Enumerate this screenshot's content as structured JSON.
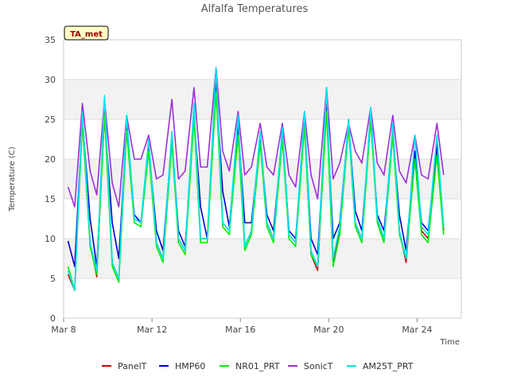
{
  "chart_data": {
    "type": "line",
    "title": "Alfalfa Temperatures",
    "xlabel": "Time",
    "ylabel": "Temperature (C)",
    "site_tag": "TA_met",
    "ylim": [
      0,
      35
    ],
    "yticks": [
      0,
      5,
      10,
      15,
      20,
      25,
      30,
      35
    ],
    "xlim_days": [
      8,
      26
    ],
    "xticks": [
      {
        "day": 8,
        "label": "Mar 8"
      },
      {
        "day": 12,
        "label": "Mar 12"
      },
      {
        "day": 16,
        "label": "Mar 16"
      },
      {
        "day": 20,
        "label": "Mar 20"
      },
      {
        "day": 24,
        "label": "Mar 24"
      }
    ],
    "legend_position": "bottom",
    "grid": true,
    "series": [
      {
        "name": "PanelT",
        "color": "#cc0000"
      },
      {
        "name": "HMP60",
        "color": "#0000cc"
      },
      {
        "name": "NR01_PRT",
        "color": "#00ee00"
      },
      {
        "name": "SonicT",
        "color": "#9b30d9"
      },
      {
        "name": "AM25T_PRT",
        "color": "#00e5ee"
      }
    ],
    "x": [
      8.2,
      8.5,
      8.85,
      9.2,
      9.5,
      9.85,
      10.2,
      10.5,
      10.85,
      11.2,
      11.5,
      11.85,
      12.2,
      12.5,
      12.9,
      13.2,
      13.5,
      13.9,
      14.2,
      14.5,
      14.9,
      15.2,
      15.5,
      15.9,
      16.2,
      16.5,
      16.9,
      17.2,
      17.5,
      17.9,
      18.2,
      18.5,
      18.9,
      19.2,
      19.5,
      19.9,
      20.2,
      20.5,
      20.9,
      21.2,
      21.5,
      21.9,
      22.2,
      22.5,
      22.9,
      23.2,
      23.5,
      23.9,
      24.2,
      24.5,
      24.9,
      25.2
    ],
    "values": {
      "PanelT": [
        5.5,
        3.5,
        25.5,
        9.5,
        5.2,
        26.5,
        7.0,
        5.0,
        24.5,
        12.5,
        12.0,
        22.0,
        9.5,
        7.5,
        23.0,
        10.0,
        8.5,
        26.0,
        10.0,
        10.0,
        30.0,
        12.0,
        11.0,
        24.5,
        9.0,
        11.0,
        23.0,
        12.0,
        10.0,
        23.5,
        10.5,
        9.5,
        25.0,
        8.0,
        6.0,
        27.0,
        7.0,
        11.0,
        25.0,
        12.0,
        10.0,
        25.5,
        12.5,
        10.0,
        24.0,
        11.0,
        7.0,
        21.0,
        11.0,
        10.0,
        22.0,
        11.0
      ],
      "HMP60": [
        9.7,
        6.5,
        25.0,
        12.5,
        6.5,
        25.5,
        12.0,
        7.5,
        24.0,
        13.0,
        12.0,
        21.5,
        11.0,
        8.5,
        22.5,
        11.0,
        9.0,
        25.5,
        14.0,
        10.0,
        29.0,
        16.0,
        11.5,
        24.0,
        12.0,
        12.0,
        22.5,
        13.0,
        11.0,
        23.0,
        11.0,
        10.0,
        24.5,
        10.0,
        8.0,
        26.5,
        10.0,
        12.0,
        24.5,
        13.5,
        11.0,
        25.0,
        13.0,
        11.0,
        23.0,
        13.0,
        8.5,
        21.0,
        12.0,
        11.0,
        21.5,
        11.5
      ],
      "NR01_PRT": [
        6.5,
        3.5,
        24.5,
        9.0,
        5.5,
        25.5,
        6.5,
        4.5,
        23.5,
        12.0,
        11.5,
        21.0,
        9.0,
        7.0,
        22.0,
        9.5,
        8.0,
        25.0,
        9.5,
        9.5,
        28.5,
        11.5,
        10.5,
        23.0,
        8.5,
        10.5,
        22.0,
        11.5,
        9.5,
        22.5,
        10.0,
        9.0,
        24.0,
        8.0,
        6.5,
        26.0,
        6.5,
        10.5,
        24.0,
        11.5,
        9.5,
        25.0,
        12.0,
        9.5,
        23.0,
        10.5,
        7.5,
        20.0,
        10.5,
        9.5,
        20.5,
        10.5
      ],
      "SonicT": [
        16.5,
        14.0,
        27.0,
        18.5,
        15.5,
        27.5,
        17.0,
        14.0,
        25.5,
        20.0,
        20.0,
        23.0,
        17.5,
        18.0,
        27.5,
        17.5,
        18.5,
        29.0,
        19.0,
        19.0,
        31.5,
        21.0,
        18.5,
        26.0,
        18.0,
        19.0,
        24.5,
        19.0,
        18.0,
        24.5,
        18.0,
        16.5,
        26.0,
        18.0,
        15.0,
        29.0,
        17.5,
        19.5,
        24.5,
        21.0,
        19.5,
        26.5,
        19.5,
        18.0,
        25.5,
        18.5,
        17.0,
        23.0,
        18.0,
        17.5,
        24.5,
        18.0
      ],
      "AM25T_PRT": [
        6.0,
        3.5,
        26.0,
        9.5,
        6.0,
        28.0,
        7.0,
        5.0,
        25.5,
        12.5,
        12.0,
        22.5,
        9.5,
        7.5,
        23.5,
        10.0,
        8.5,
        27.0,
        10.0,
        10.0,
        31.5,
        12.0,
        11.0,
        25.5,
        9.0,
        11.0,
        23.5,
        12.0,
        10.0,
        24.0,
        10.5,
        9.5,
        26.0,
        8.5,
        6.5,
        29.0,
        7.5,
        11.5,
        25.0,
        12.0,
        10.0,
        26.5,
        12.5,
        10.0,
        24.5,
        11.0,
        7.5,
        23.0,
        11.5,
        10.5,
        23.0,
        11.5
      ]
    }
  }
}
